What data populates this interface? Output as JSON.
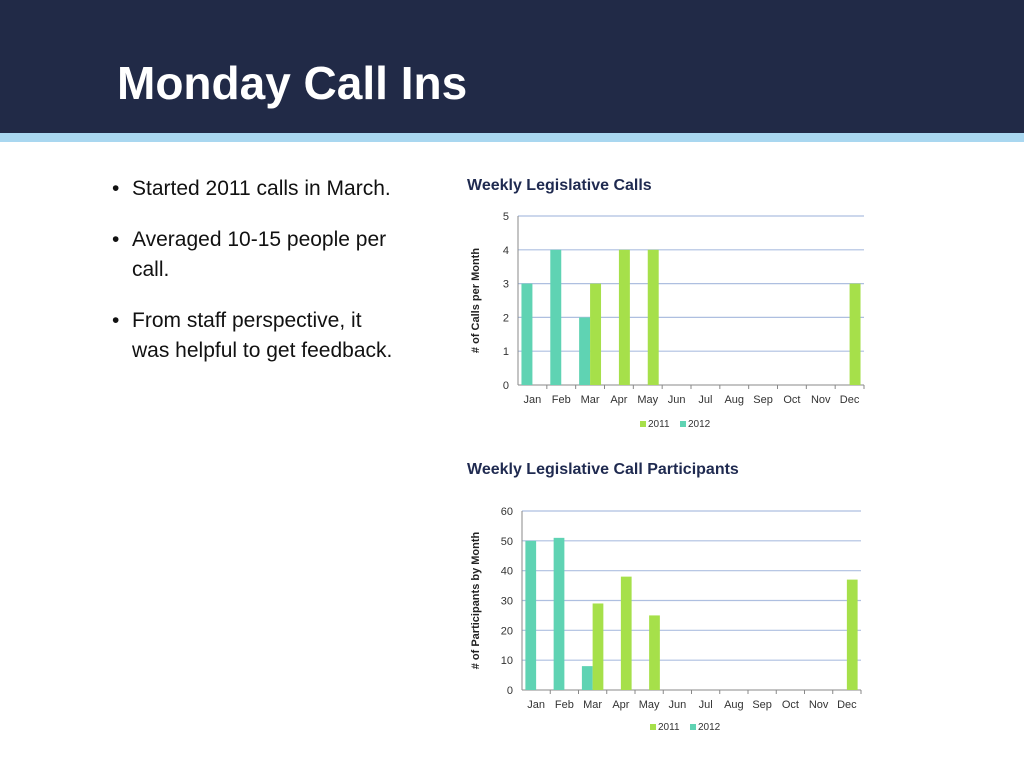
{
  "slide": {
    "title": "Monday Call Ins",
    "bullets": [
      "Started 2011 calls in March.",
      "Averaged 10-15 people per call.",
      "From staff perspective, it was helpful to get feedback."
    ]
  },
  "colors": {
    "header_bg": "#212a47",
    "header_stripe": "#a9d7f0",
    "series_2011": "#a6e04a",
    "series_2012": "#5fd3b3",
    "gridline": "#aebfe0"
  },
  "chart_data": [
    {
      "type": "bar",
      "title": "Weekly Legislative Calls",
      "ylabel": "# of Calls  per  Month",
      "xlabel": "",
      "categories": [
        "Jan",
        "Feb",
        "Mar",
        "Apr",
        "May",
        "Jun",
        "Jul",
        "Aug",
        "Sep",
        "Oct",
        "Nov",
        "Dec"
      ],
      "series": [
        {
          "name": "2011",
          "values": [
            0,
            0,
            3,
            4,
            4,
            0,
            0,
            0,
            0,
            0,
            0,
            3
          ]
        },
        {
          "name": "2012",
          "values": [
            3,
            4,
            2,
            0,
            0,
            0,
            0,
            0,
            0,
            0,
            0,
            0
          ]
        }
      ],
      "ylim": [
        0,
        5
      ],
      "yticks": [
        0,
        1,
        2,
        3,
        4,
        5
      ],
      "grid": true,
      "legend": "bottom"
    },
    {
      "type": "bar",
      "title": "Weekly Legislative Call Participants",
      "ylabel": "# of Participants by  Month",
      "xlabel": "",
      "categories": [
        "Jan",
        "Feb",
        "Mar",
        "Apr",
        "May",
        "Jun",
        "Jul",
        "Aug",
        "Sep",
        "Oct",
        "Nov",
        "Dec"
      ],
      "series": [
        {
          "name": "2011",
          "values": [
            0,
            0,
            29,
            38,
            25,
            0,
            0,
            0,
            0,
            0,
            0,
            37
          ]
        },
        {
          "name": "2012",
          "values": [
            50,
            51,
            8,
            0,
            0,
            0,
            0,
            0,
            0,
            0,
            0,
            0
          ]
        }
      ],
      "ylim": [
        0,
        60
      ],
      "yticks": [
        0,
        10,
        20,
        30,
        40,
        50,
        60
      ],
      "grid": true,
      "legend": "bottom"
    }
  ]
}
